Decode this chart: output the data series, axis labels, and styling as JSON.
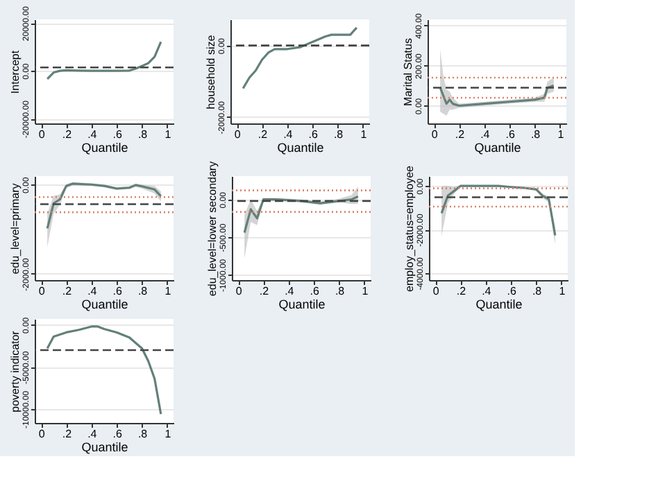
{
  "chart_data": [
    {
      "type": "line",
      "ylabel": "Intercept",
      "xlabel": "Quantile",
      "xlim": [
        -0.05,
        1.05
      ],
      "ylim": [
        -22000,
        21500
      ],
      "xticks": [
        0,
        {
          "value": 0.2,
          "label": ".2"
        },
        {
          "value": 0.4,
          "label": ".4"
        },
        {
          "value": 0.6,
          "label": ".6"
        },
        {
          "value": 0.8,
          "label": ".8"
        },
        1
      ],
      "yticks": [
        {
          "value": -20000,
          "label": "-20000.00"
        },
        {
          "value": 0,
          "label": "0.00"
        },
        {
          "value": 20000,
          "label": "20000.00"
        }
      ],
      "grid": "y",
      "x": [
        0.05,
        0.1,
        0.15,
        0.2,
        0.3,
        0.4,
        0.5,
        0.6,
        0.7,
        0.75,
        0.8,
        0.85,
        0.9,
        0.95
      ],
      "series": [
        {
          "color": "#62807a",
          "values": [
            -3400,
            -700,
            0,
            200,
            100,
            0,
            0,
            0,
            100,
            900,
            2000,
            3200,
            5900,
            12100
          ]
        }
      ],
      "ref_lines": [
        {
          "axis": "y",
          "value": 1400,
          "color": "#444444",
          "line_style": "dashed"
        }
      ]
    },
    {
      "type": "line",
      "ylabel": "household size",
      "xlabel": "Quantile",
      "xlim": [
        -0.05,
        1.05
      ],
      "ylim": [
        -2180,
        730
      ],
      "xticks": [
        0,
        {
          "value": 0.2,
          "label": ".2"
        },
        {
          "value": 0.4,
          "label": ".4"
        },
        {
          "value": 0.6,
          "label": ".6"
        },
        {
          "value": 0.8,
          "label": ".8"
        },
        1
      ],
      "yticks": [
        {
          "value": -2000,
          "label": "-2000.00"
        },
        {
          "value": 0,
          "label": "0.00"
        }
      ],
      "grid": "y",
      "x": [
        0.05,
        0.1,
        0.15,
        0.2,
        0.25,
        0.3,
        0.4,
        0.5,
        0.6,
        0.7,
        0.75,
        0.8,
        0.9,
        0.95
      ],
      "series": [
        {
          "color": "#62807a",
          "values": [
            -1200,
            -900,
            -700,
            -400,
            -200,
            -100,
            -100,
            -50,
            100,
            250,
            300,
            300,
            300,
            500
          ]
        }
      ],
      "ref_lines": [
        {
          "axis": "y",
          "value": 0,
          "color": "#444444",
          "line_style": "dashed"
        }
      ]
    },
    {
      "type": "line",
      "ylabel": "Marital Status",
      "xlabel": "Quantile",
      "xlim": [
        -0.05,
        1.05
      ],
      "ylim": [
        -88,
        430
      ],
      "xticks": [
        0,
        {
          "value": 0.2,
          "label": ".2"
        },
        {
          "value": 0.4,
          "label": ".4"
        },
        {
          "value": 0.6,
          "label": ".6"
        },
        {
          "value": 0.8,
          "label": ".8"
        },
        1
      ],
      "yticks": [
        {
          "value": 0,
          "label": "0.00"
        },
        {
          "value": 200,
          "label": "200.00"
        },
        {
          "value": 400,
          "label": "400.00"
        }
      ],
      "grid": "y",
      "x": [
        0.05,
        0.075,
        0.1,
        0.125,
        0.15,
        0.2,
        0.4,
        0.6,
        0.8,
        0.875,
        0.9,
        0.95
      ],
      "series": [
        {
          "color": "#62807a",
          "values": [
            90,
            50,
            10,
            30,
            10,
            0,
            10,
            20,
            30,
            40,
            90,
            100
          ],
          "lower": [
            -30,
            -40,
            -50,
            -20,
            -20,
            -10,
            0,
            10,
            20,
            20,
            60,
            70
          ],
          "upper": [
            280,
            150,
            80,
            70,
            40,
            10,
            20,
            30,
            40,
            60,
            120,
            140
          ]
        }
      ],
      "ref_lines": [
        {
          "axis": "y",
          "value": 90,
          "color": "#444444",
          "line_style": "dashed"
        },
        {
          "axis": "y",
          "value": 140,
          "color": "#d9836b",
          "line_style": "dotted"
        },
        {
          "axis": "y",
          "value": 40,
          "color": "#d9836b",
          "line_style": "dotted"
        }
      ]
    },
    {
      "type": "line",
      "ylabel": "edu_level=primary",
      "xlabel": "Quantile",
      "xlim": [
        -0.05,
        1.05
      ],
      "ylim": [
        -2140,
        190
      ],
      "xticks": [
        0,
        {
          "value": 0.2,
          "label": ".2"
        },
        {
          "value": 0.4,
          "label": ".4"
        },
        {
          "value": 0.6,
          "label": ".6"
        },
        {
          "value": 0.8,
          "label": ".8"
        },
        1
      ],
      "yticks": [
        {
          "value": -2000,
          "label": "-2000.00"
        },
        {
          "value": 0,
          "label": "0.00"
        }
      ],
      "grid": "y",
      "x": [
        0.05,
        0.1,
        0.15,
        0.2,
        0.25,
        0.4,
        0.5,
        0.6,
        0.7,
        0.75,
        0.8,
        0.9,
        0.95
      ],
      "series": [
        {
          "color": "#62807a",
          "values": [
            -980,
            -420,
            -330,
            -30,
            20,
            0,
            -30,
            -90,
            -70,
            -10,
            -40,
            -110,
            -260
          ],
          "lower": [
            -1400,
            -650,
            -450,
            -80,
            -20,
            -30,
            -60,
            -120,
            -100,
            -50,
            -90,
            -200,
            -380
          ],
          "upper": [
            -650,
            -250,
            -220,
            10,
            50,
            30,
            0,
            -60,
            -40,
            20,
            0,
            -30,
            -150
          ]
        }
      ],
      "ref_lines": [
        {
          "axis": "y",
          "value": -440,
          "color": "#444444",
          "line_style": "dashed"
        },
        {
          "axis": "y",
          "value": -280,
          "color": "#d9836b",
          "line_style": "dotted"
        },
        {
          "axis": "y",
          "value": -620,
          "color": "#d9836b",
          "line_style": "dotted"
        }
      ]
    },
    {
      "type": "line",
      "ylabel": "edu_level=lower secondary",
      "xlabel": "Quantile",
      "xlim": [
        -0.05,
        1.05
      ],
      "ylim": [
        -1070,
        310
      ],
      "xticks": [
        0,
        {
          "value": 0.2,
          "label": ".2"
        },
        {
          "value": 0.4,
          "label": ".4"
        },
        {
          "value": 0.6,
          "label": ".6"
        },
        {
          "value": 0.8,
          "label": ".8"
        },
        1
      ],
      "yticks": [
        {
          "value": -1000,
          "label": "-1000.00"
        },
        {
          "value": -500,
          "label": "-500.00"
        },
        {
          "value": 0,
          "label": "0.00"
        }
      ],
      "grid": "y",
      "x": [
        0.05,
        0.1,
        0.15,
        0.2,
        0.3,
        0.5,
        0.65,
        0.8,
        0.9,
        0.95
      ],
      "series": [
        {
          "color": "#62807a",
          "values": [
            -440,
            -130,
            -250,
            0,
            0,
            -20,
            -50,
            -20,
            0,
            40
          ],
          "lower": [
            -780,
            -300,
            -340,
            -20,
            -20,
            -40,
            -70,
            -40,
            -60,
            -60
          ],
          "upper": [
            -200,
            0,
            -150,
            20,
            20,
            0,
            -30,
            10,
            60,
            170
          ]
        }
      ],
      "ref_lines": [
        {
          "axis": "y",
          "value": -20,
          "color": "#444444",
          "line_style": "dashed"
        },
        {
          "axis": "y",
          "value": 120,
          "color": "#d9836b",
          "line_style": "dotted"
        },
        {
          "axis": "y",
          "value": -165,
          "color": "#d9836b",
          "line_style": "dotted"
        }
      ]
    },
    {
      "type": "line",
      "ylabel": "employ_status=employee",
      "xlabel": "Quantile",
      "xlim": [
        -0.05,
        1.05
      ],
      "ylim": [
        -4320,
        450
      ],
      "xticks": [
        0,
        {
          "value": 0.2,
          "label": ".2"
        },
        {
          "value": 0.4,
          "label": ".4"
        },
        {
          "value": 0.6,
          "label": ".6"
        },
        {
          "value": 0.8,
          "label": ".8"
        },
        1
      ],
      "yticks": [
        {
          "value": -4000,
          "label": "-4000.00"
        },
        {
          "value": -2000,
          "label": "-2000.00"
        },
        {
          "value": 0,
          "label": "0.00"
        }
      ],
      "grid": "y",
      "x": [
        0.05,
        0.1,
        0.15,
        0.2,
        0.5,
        0.6,
        0.7,
        0.8,
        0.85,
        0.9,
        0.95
      ],
      "series": [
        {
          "color": "#62807a",
          "values": [
            -1250,
            -450,
            -230,
            0,
            0,
            -50,
            -90,
            -160,
            -450,
            -610,
            -2270
          ],
          "lower": [
            -2300,
            -800,
            -350,
            -40,
            -30,
            -80,
            -120,
            -220,
            -560,
            -750,
            -2700
          ],
          "upper": [
            0,
            0,
            -50,
            30,
            30,
            -10,
            -60,
            -100,
            -350,
            -480,
            -1900
          ]
        }
      ],
      "ref_lines": [
        {
          "axis": "y",
          "value": -520,
          "color": "#444444",
          "line_style": "dashed"
        },
        {
          "axis": "y",
          "value": -110,
          "color": "#d9836b",
          "line_style": "dotted"
        },
        {
          "axis": "y",
          "value": -950,
          "color": "#d9836b",
          "line_style": "dotted"
        }
      ]
    },
    {
      "type": "line",
      "ylabel": "poverty indicator",
      "xlabel": "Quantile",
      "xlim": [
        -0.05,
        1.05
      ],
      "ylim": [
        -11650,
        700
      ],
      "xticks": [
        0,
        {
          "value": 0.2,
          "label": ".2"
        },
        {
          "value": 0.4,
          "label": ".4"
        },
        {
          "value": 0.6,
          "label": ".6"
        },
        {
          "value": 0.8,
          "label": ".8"
        },
        1
      ],
      "yticks": [
        {
          "value": -10000,
          "label": "-10000.00"
        },
        {
          "value": -5000,
          "label": "-5000.00"
        },
        {
          "value": 0,
          "label": "0.00"
        }
      ],
      "grid": "y",
      "x": [
        0.05,
        0.1,
        0.2,
        0.3,
        0.4,
        0.45,
        0.5,
        0.6,
        0.7,
        0.8,
        0.85,
        0.9,
        0.95
      ],
      "series": [
        {
          "color": "#62807a",
          "values": [
            -2800,
            -1400,
            -900,
            -600,
            -200,
            -200,
            -500,
            -900,
            -1500,
            -2800,
            -4300,
            -6400,
            -10600
          ]
        }
      ],
      "ref_lines": [
        {
          "axis": "y",
          "value": -3000,
          "color": "#444444",
          "line_style": "dashed"
        }
      ]
    }
  ]
}
